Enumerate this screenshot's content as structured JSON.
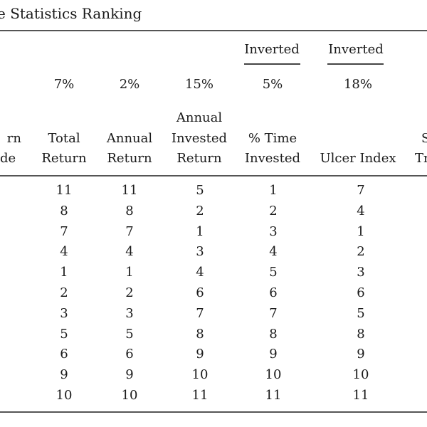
{
  "table": {
    "title_fragment": "e Statistics Ranking",
    "inverted_labels": [
      "Inverted",
      "Inverted"
    ],
    "weights": [
      "7%",
      "2%",
      "15%",
      "5%",
      "18%"
    ],
    "left_partial_header": [
      "rn",
      "de"
    ],
    "right_partial_header": [
      "S",
      "Tr"
    ],
    "columns": [
      {
        "header": [
          "",
          "Total",
          "Return"
        ]
      },
      {
        "header": [
          "",
          "Annual",
          "Return"
        ]
      },
      {
        "header": [
          "Annual",
          "Invested",
          "Return"
        ]
      },
      {
        "header": [
          "",
          "% Time",
          "Invested"
        ]
      },
      {
        "header": [
          "",
          "",
          "Ulcer Index"
        ]
      }
    ],
    "rows": [
      [
        11,
        11,
        5,
        1,
        7
      ],
      [
        8,
        8,
        2,
        2,
        4
      ],
      [
        7,
        7,
        1,
        3,
        1
      ],
      [
        4,
        4,
        3,
        4,
        2
      ],
      [
        1,
        1,
        4,
        5,
        3
      ],
      [
        2,
        2,
        6,
        6,
        6
      ],
      [
        3,
        3,
        7,
        7,
        5
      ],
      [
        5,
        5,
        8,
        8,
        8
      ],
      [
        6,
        6,
        9,
        9,
        9
      ],
      [
        9,
        9,
        10,
        10,
        10
      ],
      [
        10,
        10,
        11,
        11,
        11
      ]
    ]
  }
}
